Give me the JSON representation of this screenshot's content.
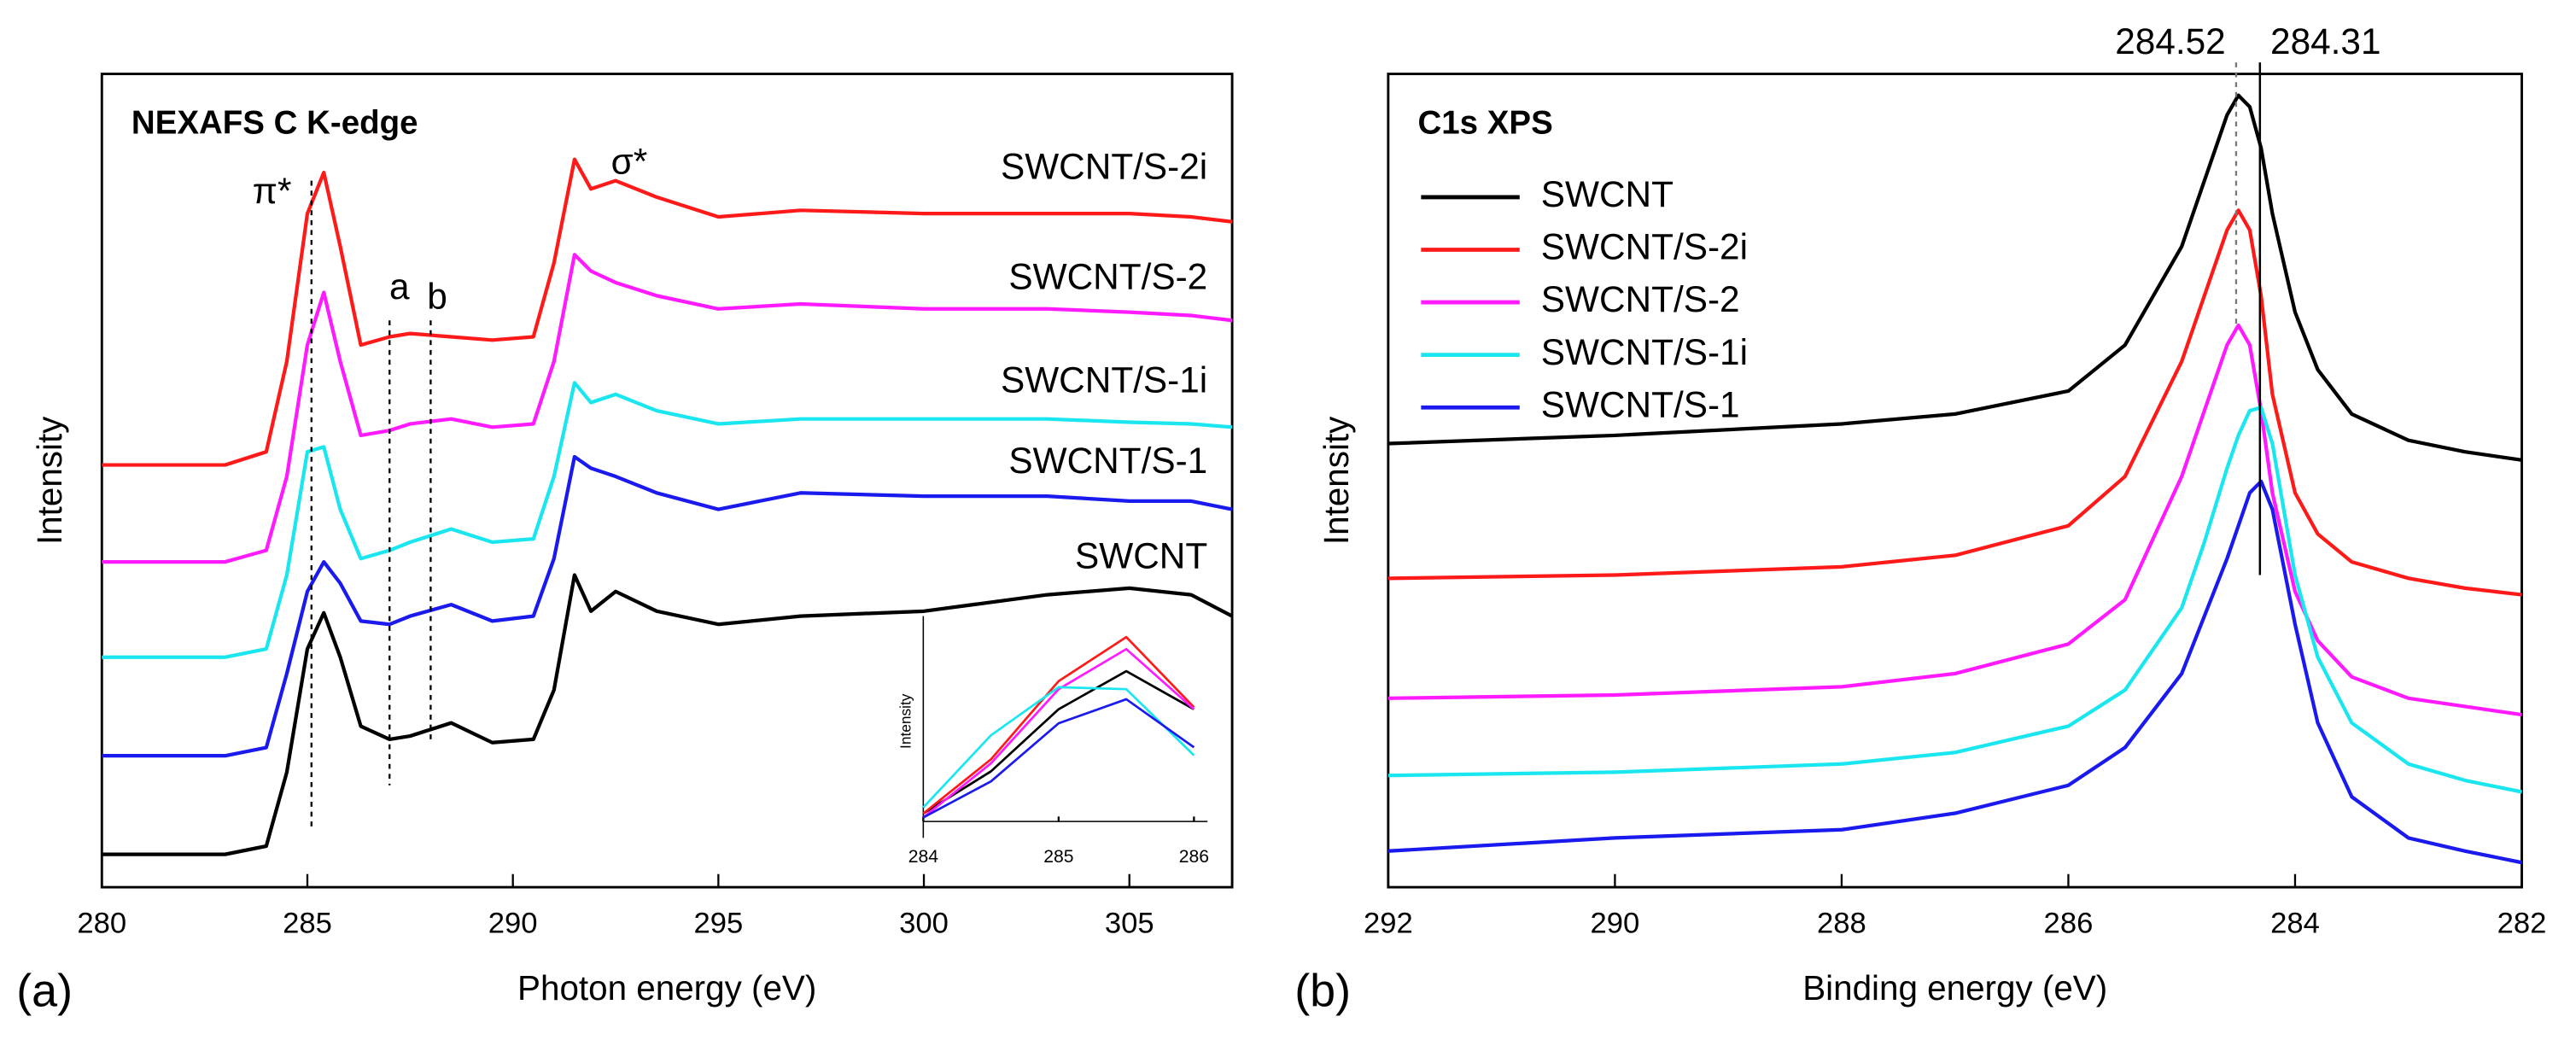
{
  "chart_data": [
    {
      "type": "line",
      "panel_label": "(a)",
      "title": "NEXAFS C K-edge",
      "xlabel": "Photon energy (eV)",
      "ylabel": "Intensity",
      "xlim": [
        280,
        307.5
      ],
      "ylim": [
        0,
        495
      ],
      "xticks": [
        280,
        285,
        290,
        295,
        300,
        305
      ],
      "x": [
        280,
        283,
        284,
        284.5,
        285,
        285.4,
        285.8,
        286.3,
        287,
        287.5,
        288.5,
        289.5,
        290.5,
        291,
        291.5,
        291.9,
        292.5,
        293.5,
        295,
        297,
        300,
        303,
        305,
        306.5,
        307.5
      ],
      "series": [
        {
          "name": "SWCNT/S-2i",
          "color": "#ff1a1a",
          "values": [
            257,
            257,
            265,
            320,
            410,
            435,
            390,
            330,
            335,
            337,
            335,
            333,
            335,
            380,
            443,
            425,
            430,
            420,
            408,
            412,
            410,
            410,
            410,
            408,
            405
          ]
        },
        {
          "name": "SWCNT/S-2",
          "color": "#ff1aff",
          "values": [
            198,
            198,
            205,
            250,
            330,
            362,
            320,
            275,
            278,
            282,
            285,
            280,
            282,
            320,
            385,
            375,
            368,
            360,
            352,
            355,
            352,
            352,
            350,
            348,
            345
          ]
        },
        {
          "name": "SWCNT/S-1i",
          "color": "#1ae6f0",
          "values": [
            140,
            140,
            145,
            190,
            265,
            268,
            230,
            200,
            205,
            210,
            218,
            210,
            212,
            250,
            307,
            295,
            300,
            290,
            282,
            285,
            285,
            285,
            283,
            282,
            280
          ]
        },
        {
          "name": "SWCNT/S-1",
          "color": "#1a1aee",
          "values": [
            80,
            80,
            85,
            130,
            180,
            198,
            185,
            162,
            160,
            165,
            172,
            162,
            165,
            200,
            262,
            255,
            250,
            240,
            230,
            240,
            238,
            238,
            235,
            235,
            230
          ]
        },
        {
          "name": "SWCNT",
          "color": "#000000",
          "values": [
            20,
            20,
            25,
            70,
            145,
            167,
            140,
            98,
            90,
            92,
            100,
            88,
            90,
            120,
            190,
            168,
            180,
            168,
            160,
            165,
            168,
            178,
            182,
            178,
            165
          ]
        }
      ],
      "markers": [
        {
          "label": "π*",
          "x": 285.1
        },
        {
          "label": "a",
          "x": 287.0
        },
        {
          "label": "b",
          "x": 288.0
        }
      ],
      "annotations": [
        "σ*"
      ]
    },
    {
      "type": "line",
      "ylabel": "Intensity",
      "xlim": [
        284,
        286.1
      ],
      "ylim": [
        0,
        100
      ],
      "xticks": [
        284,
        285,
        286
      ],
      "x": [
        284,
        284.5,
        285,
        285.5,
        286
      ],
      "series": [
        {
          "color": "#000000",
          "values": [
            4,
            25,
            56,
            75,
            56
          ]
        },
        {
          "color": "#ff1a1a",
          "values": [
            4,
            31,
            70,
            92,
            57
          ]
        },
        {
          "color": "#ff1aff",
          "values": [
            2,
            29,
            66,
            86,
            56
          ]
        },
        {
          "color": "#1ae6f0",
          "values": [
            7,
            43,
            67,
            66,
            33
          ]
        },
        {
          "color": "#1a1aee",
          "values": [
            2,
            20,
            49,
            61,
            37
          ]
        }
      ]
    },
    {
      "type": "line",
      "panel_label": "(b)",
      "title": "C1s XPS",
      "xlabel": "Binding energy (eV)",
      "ylabel": "Intensity",
      "xlim": [
        292,
        282
      ],
      "ylim": [
        0,
        495
      ],
      "xticks": [
        292,
        290,
        288,
        286,
        284,
        282
      ],
      "x": [
        292,
        290,
        288,
        287,
        286,
        285.5,
        285,
        284.8,
        284.6,
        284.5,
        284.4,
        284.3,
        284.2,
        284,
        283.8,
        283.5,
        283,
        282.5,
        282
      ],
      "series": [
        {
          "name": "SWCNT",
          "color": "#000000",
          "values": [
            270,
            275,
            282,
            288,
            302,
            330,
            390,
            430,
            470,
            482,
            475,
            450,
            410,
            350,
            315,
            288,
            272,
            265,
            260
          ]
        },
        {
          "name": "SWCNT/S-2i",
          "color": "#ff1a1a",
          "values": [
            188,
            190,
            195,
            202,
            220,
            250,
            320,
            360,
            400,
            412,
            400,
            360,
            300,
            240,
            215,
            198,
            188,
            182,
            178
          ]
        },
        {
          "name": "SWCNT/S-2",
          "color": "#ff1aff",
          "values": [
            115,
            117,
            122,
            130,
            148,
            175,
            250,
            290,
            330,
            342,
            330,
            290,
            240,
            180,
            150,
            128,
            115,
            110,
            105
          ]
        },
        {
          "name": "SWCNT/S-1i",
          "color": "#1ae6f0",
          "values": [
            68,
            70,
            75,
            82,
            98,
            120,
            170,
            210,
            255,
            275,
            290,
            292,
            270,
            190,
            140,
            100,
            75,
            65,
            58
          ]
        },
        {
          "name": "SWCNT/S-1",
          "color": "#1a1aee",
          "values": [
            22,
            30,
            35,
            45,
            62,
            85,
            130,
            165,
            200,
            220,
            240,
            247,
            230,
            160,
            100,
            55,
            30,
            22,
            15
          ]
        }
      ],
      "markers": [
        {
          "x": 284.52,
          "dashed": true
        },
        {
          "x": 284.31,
          "dashed": false
        }
      ]
    }
  ]
}
